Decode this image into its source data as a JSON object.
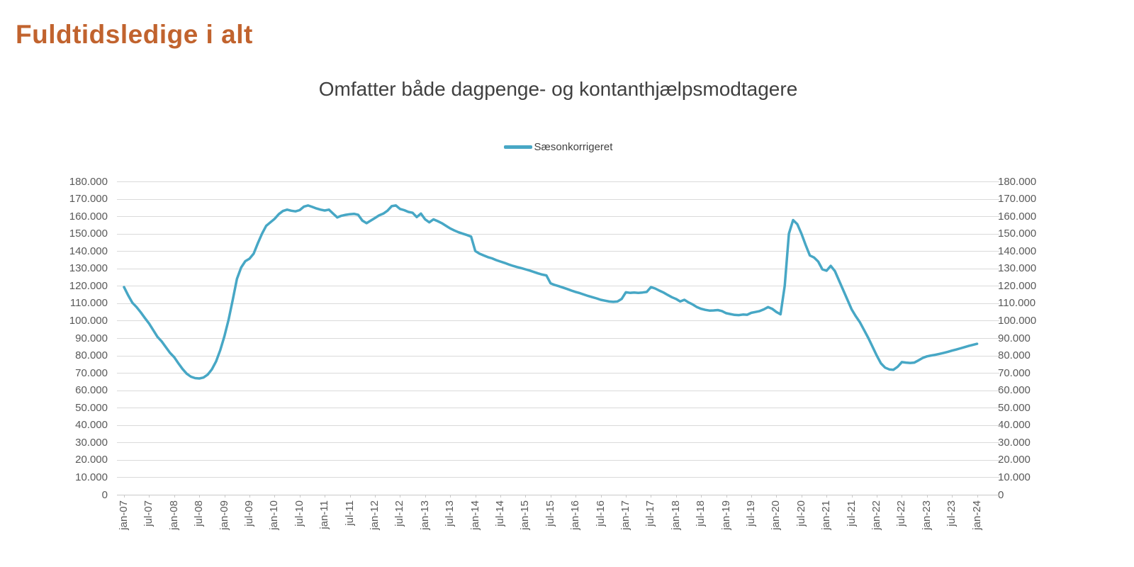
{
  "page": {
    "title": "Fuldtidsledige i alt"
  },
  "colors": {
    "title": "#C1632E",
    "subtitle": "#404040",
    "legend_text": "#404040",
    "axis_text": "#595959",
    "gridline": "#DADADA",
    "axis_line": "#C9C9C9",
    "series_line": "#47A7C5",
    "background": "#FFFFFF"
  },
  "chart_data": {
    "type": "line",
    "title": "Omfatter både dagpenge- og kontanthjælpsmodtagere",
    "grid": "horizontal",
    "legend_position": "top-center",
    "x_axis": {
      "data_start": "jan-07",
      "data_end": "jan-24",
      "data_frequency": "monthly",
      "label_rotation_degrees": -90,
      "tick_labels": [
        "jan-07",
        "jul-07",
        "jan-08",
        "jul-08",
        "jan-09",
        "jul-09",
        "jan-10",
        "jul-10",
        "jan-11",
        "jul-11",
        "jan-12",
        "jul-12",
        "jan-13",
        "jul-13",
        "jan-14",
        "jul-14",
        "jan-15",
        "jul-15",
        "jan-16",
        "jul-16",
        "jan-17",
        "jul-17",
        "jan-18",
        "jul-18",
        "jan-19",
        "jul-19",
        "jan-20",
        "jul-20",
        "jan-21",
        "jul-21",
        "jan-22",
        "jul-22",
        "jan-23",
        "jul-23",
        "jan-24"
      ]
    },
    "y_axis": {
      "min": 0,
      "max": 180000,
      "step": 10000,
      "sides": "both",
      "tick_labels": [
        "0",
        "10.000",
        "20.000",
        "30.000",
        "40.000",
        "50.000",
        "60.000",
        "70.000",
        "80.000",
        "90.000",
        "100.000",
        "110.000",
        "120.000",
        "130.000",
        "140.000",
        "150.000",
        "160.000",
        "170.000",
        "180.000"
      ]
    },
    "series": [
      {
        "name": "Sæsonkorrigeret",
        "color": "#47A7C5",
        "values_are_estimated_from_pixels": true,
        "values": [
          119300,
          114500,
          110300,
          107800,
          104800,
          101500,
          98300,
          94500,
          90700,
          88100,
          84800,
          81500,
          79000,
          75500,
          72200,
          69500,
          67800,
          67000,
          66800,
          67300,
          69000,
          72000,
          76500,
          83000,
          91000,
          100500,
          112000,
          124000,
          130500,
          134200,
          135600,
          138500,
          144500,
          150000,
          154500,
          156500,
          158500,
          161200,
          163000,
          163800,
          163200,
          162800,
          163500,
          165500,
          166200,
          165400,
          164500,
          163800,
          163300,
          163800,
          161500,
          159300,
          160300,
          160800,
          161200,
          161400,
          160800,
          157500,
          156000,
          157500,
          159000,
          160500,
          161500,
          163200,
          165800,
          166200,
          164200,
          163500,
          162500,
          162000,
          159500,
          161500,
          158200,
          156500,
          158200,
          157200,
          156000,
          154500,
          153000,
          151800,
          150800,
          150000,
          149200,
          148300,
          140000,
          138500,
          137500,
          136500,
          135800,
          134800,
          134000,
          133200,
          132300,
          131500,
          130800,
          130200,
          129500,
          128800,
          128000,
          127200,
          126500,
          126000,
          121500,
          120500,
          119800,
          119000,
          118200,
          117300,
          116500,
          115800,
          115000,
          114200,
          113500,
          112800,
          112000,
          111500,
          111000,
          110800,
          111000,
          112500,
          116300,
          116000,
          116200,
          116000,
          116200,
          116500,
          119300,
          118500,
          117300,
          116200,
          114800,
          113500,
          112500,
          111000,
          112000,
          110500,
          109300,
          107800,
          106800,
          106200,
          105800,
          105900,
          106100,
          105500,
          104300,
          103800,
          103300,
          103200,
          103500,
          103400,
          104500,
          105000,
          105500,
          106500,
          107800,
          106800,
          105000,
          103700,
          120000,
          150000,
          157800,
          155500,
          150000,
          143500,
          137500,
          136300,
          134000,
          129500,
          128700,
          131500,
          128500,
          123000,
          117500,
          112000,
          106500,
          102500,
          99000,
          94500,
          90000,
          85000,
          80000,
          75500,
          73000,
          72000,
          71800,
          73500,
          76200,
          75900,
          75700,
          75900,
          77200,
          78600,
          79500,
          80000,
          80400,
          80900,
          81500,
          82100,
          82800,
          83400,
          84100,
          84800,
          85500,
          86100,
          86700
        ]
      }
    ]
  }
}
